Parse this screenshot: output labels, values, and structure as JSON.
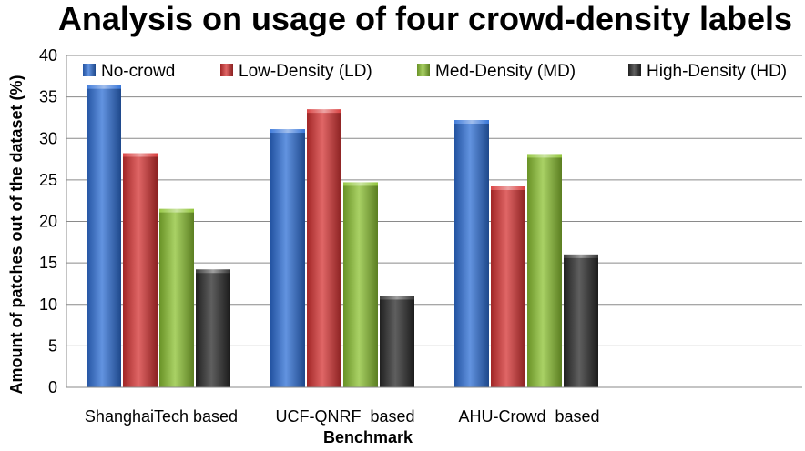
{
  "chart_data": {
    "type": "bar",
    "title": "Analysis on usage of four crowd-density labels",
    "xlabel": "Benchmark",
    "ylabel": "Amount of patches out of the dataset (%)",
    "ylim": [
      0,
      40
    ],
    "yticks": [
      0,
      5,
      10,
      15,
      20,
      25,
      30,
      35,
      40
    ],
    "grid": true,
    "legend_position": "top",
    "categories": [
      "ShanghaiTech based",
      "UCF-QNRF  based",
      "AHU-Crowd  based"
    ],
    "series": [
      {
        "name": "No-crowd",
        "color": "#2e6fd6",
        "values": [
          36.2,
          30.9,
          32.0
        ]
      },
      {
        "name": "Low-Density (LD)",
        "color": "#d63333",
        "values": [
          28.0,
          33.3,
          24.0
        ]
      },
      {
        "name": "Med-Density (MD)",
        "color": "#8cc232",
        "values": [
          21.3,
          24.5,
          27.9
        ]
      },
      {
        "name": "High-Density (HD)",
        "color": "#2a2a2a",
        "values": [
          14.0,
          10.8,
          15.8
        ]
      }
    ]
  }
}
